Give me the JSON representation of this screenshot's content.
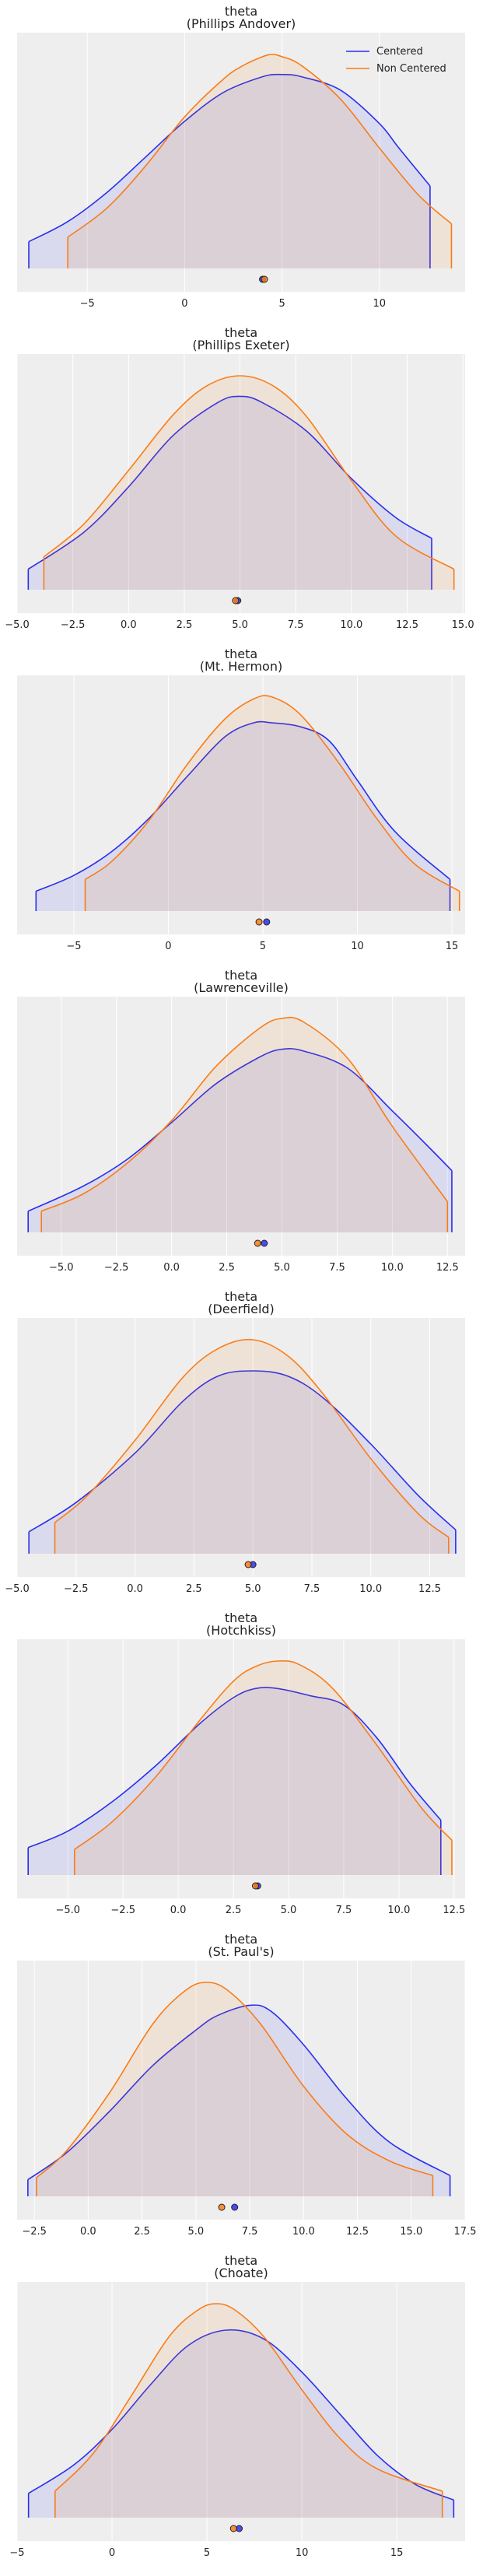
{
  "legend": {
    "entries": [
      "Centered",
      "Non Centered"
    ],
    "placement": "top-right",
    "colors": [
      "#2a2eec",
      "#fa7c17"
    ]
  },
  "style": {
    "background": "#eeeeee",
    "grid_color": "#ffffff",
    "fill_alpha": 0.1
  },
  "chart_data": [
    {
      "type": "area",
      "title": "theta",
      "subtitle": "(Phillips Andover)",
      "xlim": [
        -8.6,
        14.4
      ],
      "ticks": [
        -5,
        0,
        5,
        10
      ],
      "tick_labels": [
        "−5",
        "0",
        "5",
        "10"
      ],
      "grid": true,
      "series": [
        {
          "name": "Centered",
          "color": "#2a2eec",
          "range": [
            -8.0,
            12.6
          ],
          "x": [
            -8.0,
            -6.0,
            -4.0,
            -2.0,
            0.0,
            2.0,
            4.0,
            5.0,
            6.0,
            8.0,
            10.0,
            11.0,
            12.6
          ],
          "y": [
            0.012,
            0.021,
            0.034,
            0.05,
            0.066,
            0.079,
            0.086,
            0.087,
            0.086,
            0.08,
            0.065,
            0.054,
            0.037
          ],
          "point": 4.0
        },
        {
          "name": "Non Centered",
          "color": "#fa7c17",
          "range": [
            -6.0,
            13.7
          ],
          "x": [
            -6.0,
            -4.0,
            -2.0,
            0.0,
            2.0,
            3.0,
            4.0,
            4.5,
            5.0,
            6.0,
            8.0,
            10.0,
            12.0,
            13.7
          ],
          "y": [
            0.014,
            0.027,
            0.046,
            0.068,
            0.085,
            0.091,
            0.095,
            0.096,
            0.095,
            0.091,
            0.076,
            0.054,
            0.033,
            0.02
          ],
          "point": 4.1
        }
      ]
    },
    {
      "type": "area",
      "title": "theta",
      "subtitle": "(Phillips Exeter)",
      "xlim": [
        -5.0,
        15.1
      ],
      "ticks": [
        -5.0,
        -2.5,
        0.0,
        2.5,
        5.0,
        7.5,
        10.0,
        12.5,
        15.0
      ],
      "tick_labels": [
        "−5.0",
        "−2.5",
        "0.0",
        "2.5",
        "5.0",
        "7.5",
        "10.0",
        "12.5",
        "15.0"
      ],
      "grid": true,
      "series": [
        {
          "name": "Centered",
          "color": "#2a2eec",
          "range": [
            -4.5,
            13.6
          ],
          "x": [
            -4.5,
            -2.0,
            0.0,
            2.0,
            4.0,
            5.0,
            6.0,
            8.0,
            10.0,
            12.0,
            13.6
          ],
          "y": [
            0.01,
            0.028,
            0.05,
            0.075,
            0.091,
            0.094,
            0.091,
            0.077,
            0.054,
            0.035,
            0.025
          ],
          "point": 4.9
        },
        {
          "name": "Non Centered",
          "color": "#fa7c17",
          "range": [
            -3.8,
            14.6
          ],
          "x": [
            -3.8,
            -2.0,
            0.0,
            2.0,
            3.5,
            5.0,
            6.5,
            8.0,
            10.0,
            12.0,
            14.6
          ],
          "y": [
            0.016,
            0.032,
            0.058,
            0.085,
            0.099,
            0.104,
            0.099,
            0.084,
            0.053,
            0.026,
            0.01
          ],
          "point": 4.8
        }
      ]
    },
    {
      "type": "area",
      "title": "theta",
      "subtitle": "(Mt. Hermon)",
      "xlim": [
        -8.0,
        15.7
      ],
      "ticks": [
        -5,
        0,
        5,
        10,
        15
      ],
      "tick_labels": [
        "−5",
        "0",
        "5",
        "10",
        "15"
      ],
      "grid": true,
      "series": [
        {
          "name": "Centered",
          "color": "#2a2eec",
          "range": [
            -7.0,
            14.9
          ],
          "x": [
            -7.0,
            -5.0,
            -3.0,
            -1.0,
            1.0,
            3.0,
            4.5,
            5.5,
            7.0,
            8.5,
            10.0,
            12.0,
            14.9
          ],
          "y": [
            0.01,
            0.018,
            0.03,
            0.047,
            0.068,
            0.088,
            0.095,
            0.095,
            0.093,
            0.086,
            0.066,
            0.04,
            0.016
          ],
          "point": 5.2
        },
        {
          "name": "Non Centered",
          "color": "#fa7c17",
          "range": [
            -4.4,
            15.4
          ],
          "x": [
            -4.4,
            -3.0,
            -1.0,
            1.0,
            3.0,
            4.5,
            5.5,
            7.0,
            9.0,
            11.0,
            13.0,
            15.4
          ],
          "y": [
            0.016,
            0.025,
            0.046,
            0.074,
            0.097,
            0.107,
            0.108,
            0.099,
            0.075,
            0.047,
            0.024,
            0.01
          ],
          "point": 4.8
        }
      ]
    },
    {
      "type": "area",
      "title": "theta",
      "subtitle": "(Lawrenceville)",
      "xlim": [
        -7.0,
        13.3
      ],
      "ticks": [
        -5.0,
        -2.5,
        0.0,
        2.5,
        5.0,
        7.5,
        10.0,
        12.5
      ],
      "tick_labels": [
        "−5.0",
        "−2.5",
        "0.0",
        "2.5",
        "5.0",
        "7.5",
        "10.0",
        "12.5"
      ],
      "grid": true,
      "series": [
        {
          "name": "Centered",
          "color": "#2a2eec",
          "range": [
            -6.5,
            12.7
          ],
          "x": [
            -6.5,
            -4.0,
            -2.0,
            0.0,
            2.0,
            4.0,
            5.0,
            6.0,
            8.0,
            10.0,
            11.5,
            12.7
          ],
          "y": [
            0.011,
            0.024,
            0.038,
            0.057,
            0.077,
            0.091,
            0.095,
            0.094,
            0.085,
            0.063,
            0.046,
            0.032
          ],
          "point": 4.2
        },
        {
          "name": "Non Centered",
          "color": "#fa7c17",
          "range": [
            -5.9,
            12.5
          ],
          "x": [
            -5.9,
            -4.0,
            -2.0,
            0.0,
            2.0,
            4.0,
            5.0,
            6.0,
            8.0,
            10.0,
            12.5
          ],
          "y": [
            0.011,
            0.02,
            0.036,
            0.058,
            0.086,
            0.106,
            0.111,
            0.109,
            0.09,
            0.055,
            0.016
          ],
          "point": 3.9
        }
      ]
    },
    {
      "type": "area",
      "title": "theta",
      "subtitle": "(Deerfield)",
      "xlim": [
        -5.0,
        14.0
      ],
      "ticks": [
        -5.0,
        -2.5,
        0.0,
        2.5,
        5.0,
        7.5,
        10.0,
        12.5
      ],
      "tick_labels": [
        "−5.0",
        "−2.5",
        "0.0",
        "2.5",
        "5.0",
        "7.5",
        "10.0",
        "12.5"
      ],
      "grid": true,
      "series": [
        {
          "name": "Centered",
          "color": "#2a2eec",
          "range": [
            -4.5,
            13.6
          ],
          "x": [
            -4.5,
            -2.5,
            0.0,
            2.0,
            3.5,
            5.0,
            6.5,
            8.0,
            10.0,
            12.0,
            13.6
          ],
          "y": [
            0.012,
            0.028,
            0.055,
            0.083,
            0.097,
            0.1,
            0.097,
            0.085,
            0.06,
            0.032,
            0.013
          ],
          "point": 5.0
        },
        {
          "name": "Non Centered",
          "color": "#fa7c17",
          "range": [
            -3.4,
            13.3
          ],
          "x": [
            -3.4,
            -2.0,
            0.0,
            2.0,
            3.5,
            5.0,
            6.5,
            8.0,
            10.0,
            12.0,
            13.3
          ],
          "y": [
            0.017,
            0.032,
            0.062,
            0.096,
            0.112,
            0.117,
            0.108,
            0.087,
            0.052,
            0.022,
            0.009
          ],
          "point": 4.8
        }
      ]
    },
    {
      "type": "area",
      "title": "theta",
      "subtitle": "(Hotchkiss)",
      "xlim": [
        -7.3,
        13.0
      ],
      "ticks": [
        -5.0,
        -2.5,
        0.0,
        2.5,
        5.0,
        7.5,
        10.0,
        12.5
      ],
      "tick_labels": [
        "−5.0",
        "−2.5",
        "0.0",
        "2.5",
        "5.0",
        "7.5",
        "10.0",
        "12.5"
      ],
      "grid": true,
      "series": [
        {
          "name": "Centered",
          "color": "#2a2eec",
          "range": [
            -6.8,
            11.9
          ],
          "x": [
            -6.8,
            -5.0,
            -3.0,
            -1.0,
            1.0,
            2.5,
            3.5,
            4.5,
            6.0,
            7.5,
            9.0,
            10.5,
            11.9
          ],
          "y": [
            0.015,
            0.024,
            0.04,
            0.06,
            0.083,
            0.097,
            0.102,
            0.102,
            0.098,
            0.093,
            0.075,
            0.05,
            0.03
          ],
          "point": 3.6
        },
        {
          "name": "Non Centered",
          "color": "#fa7c17",
          "range": [
            -4.7,
            12.4
          ],
          "x": [
            -4.7,
            -3.0,
            -1.0,
            1.0,
            2.5,
            3.5,
            4.5,
            5.5,
            7.0,
            9.0,
            11.0,
            12.4
          ],
          "y": [
            0.014,
            0.029,
            0.054,
            0.085,
            0.106,
            0.114,
            0.117,
            0.115,
            0.102,
            0.071,
            0.037,
            0.019
          ],
          "point": 3.5
        }
      ]
    },
    {
      "type": "area",
      "title": "theta",
      "subtitle": "(St. Paul's)",
      "xlim": [
        -3.3,
        17.5
      ],
      "ticks": [
        -2.5,
        0.0,
        2.5,
        5.0,
        7.5,
        10.0,
        12.5,
        15.0,
        17.5
      ],
      "tick_labels": [
        "−2.5",
        "0.0",
        "2.5",
        "5.0",
        "7.5",
        "10.0",
        "12.5",
        "15.0",
        "17.5"
      ],
      "grid": true,
      "series": [
        {
          "name": "Centered",
          "color": "#2a2eec",
          "range": [
            -2.8,
            16.8
          ],
          "x": [
            -2.8,
            -1.0,
            1.0,
            3.0,
            5.0,
            6.0,
            7.5,
            8.5,
            10.0,
            12.0,
            14.0,
            16.8
          ],
          "y": [
            0.008,
            0.021,
            0.041,
            0.063,
            0.08,
            0.087,
            0.092,
            0.089,
            0.073,
            0.047,
            0.026,
            0.01
          ],
          "point": 6.8
        },
        {
          "name": "Non Centered",
          "color": "#fa7c17",
          "range": [
            -2.4,
            16.0
          ],
          "x": [
            -2.4,
            -1.0,
            1.0,
            3.0,
            4.5,
            5.5,
            6.5,
            8.0,
            10.0,
            12.0,
            14.0,
            16.0
          ],
          "y": [
            0.009,
            0.022,
            0.05,
            0.083,
            0.099,
            0.103,
            0.099,
            0.083,
            0.053,
            0.03,
            0.017,
            0.01
          ],
          "point": 6.2
        }
      ]
    },
    {
      "type": "area",
      "title": "theta",
      "subtitle": "(Choate)",
      "xlim": [
        -5.0,
        18.6
      ],
      "ticks": [
        -5,
        0,
        5,
        10,
        15
      ],
      "tick_labels": [
        "−5",
        "0",
        "5",
        "10",
        "15"
      ],
      "grid": true,
      "series": [
        {
          "name": "Centered",
          "color": "#2a2eec",
          "range": [
            -4.4,
            18.0
          ],
          "x": [
            -4.4,
            -2.0,
            0.0,
            2.0,
            4.0,
            6.0,
            8.0,
            10.0,
            12.0,
            14.0,
            16.0,
            18.0
          ],
          "y": [
            0.011,
            0.024,
            0.04,
            0.06,
            0.078,
            0.085,
            0.081,
            0.066,
            0.047,
            0.028,
            0.015,
            0.008
          ],
          "point": 6.7
        },
        {
          "name": "Non Centered",
          "color": "#fa7c17",
          "range": [
            -3.0,
            17.4
          ],
          "x": [
            -3.0,
            -1.0,
            1.0,
            3.0,
            4.5,
            5.5,
            6.5,
            8.0,
            10.0,
            12.0,
            14.0,
            17.4
          ],
          "y": [
            0.012,
            0.029,
            0.055,
            0.082,
            0.094,
            0.097,
            0.094,
            0.082,
            0.058,
            0.036,
            0.022,
            0.012
          ],
          "point": 6.4
        }
      ]
    }
  ]
}
